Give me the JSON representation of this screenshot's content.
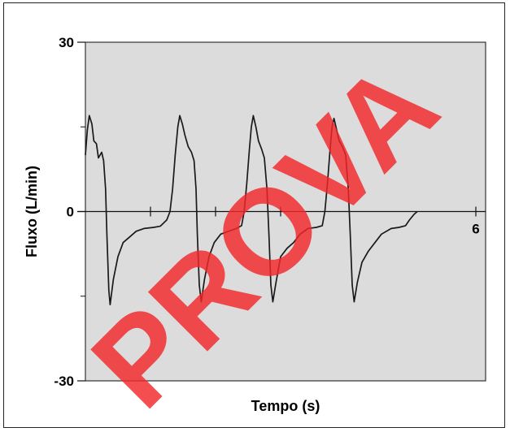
{
  "chart_data": {
    "type": "line",
    "title": "",
    "xlabel": "Tempo (s)",
    "ylabel": "Fluxo (L/min)",
    "xlim": [
      0,
      6
    ],
    "ylim": [
      -30,
      30
    ],
    "x_tick_labels": [
      {
        "x": 6,
        "label": "6"
      }
    ],
    "y_tick_labels": [
      {
        "y": 30,
        "label": "30"
      },
      {
        "y": 0,
        "label": "0"
      },
      {
        "y": -30,
        "label": "-30"
      }
    ],
    "x_minor_ticks": [
      1,
      2,
      3
    ],
    "y_minor_ticks": [
      15,
      -15
    ],
    "grid": false,
    "background_color": "#dcdcdc",
    "line_color": "#1a1a1a",
    "series": [
      {
        "points": [
          [
            0.0,
            10
          ],
          [
            0.03,
            14.5
          ],
          [
            0.06,
            17
          ],
          [
            0.1,
            15.5
          ],
          [
            0.13,
            12.5
          ],
          [
            0.17,
            12
          ],
          [
            0.2,
            9.5
          ],
          [
            0.25,
            10.5
          ],
          [
            0.28,
            9
          ],
          [
            0.31,
            4
          ],
          [
            0.33,
            -4
          ],
          [
            0.36,
            -14
          ],
          [
            0.38,
            -16.5
          ],
          [
            0.43,
            -12
          ],
          [
            0.5,
            -8
          ],
          [
            0.58,
            -5.5
          ],
          [
            0.68,
            -4.5
          ],
          [
            0.78,
            -3.5
          ],
          [
            0.9,
            -3
          ],
          [
            1.05,
            -2.8
          ],
          [
            1.15,
            -2.6
          ],
          [
            1.25,
            -1.5
          ],
          [
            1.3,
            0
          ],
          [
            1.34,
            4
          ],
          [
            1.38,
            10
          ],
          [
            1.42,
            15
          ],
          [
            1.45,
            17
          ],
          [
            1.49,
            15.5
          ],
          [
            1.53,
            13.5
          ],
          [
            1.58,
            11.5
          ],
          [
            1.63,
            10.5
          ],
          [
            1.67,
            9
          ],
          [
            1.7,
            4
          ],
          [
            1.72,
            -4
          ],
          [
            1.75,
            -13
          ],
          [
            1.78,
            -16
          ],
          [
            1.83,
            -12
          ],
          [
            1.9,
            -8
          ],
          [
            1.98,
            -5.5
          ],
          [
            2.08,
            -4
          ],
          [
            2.2,
            -3.5
          ],
          [
            2.32,
            -3
          ],
          [
            2.4,
            -2.5
          ],
          [
            2.44,
            0
          ],
          [
            2.48,
            5
          ],
          [
            2.52,
            11
          ],
          [
            2.55,
            15
          ],
          [
            2.58,
            17
          ],
          [
            2.62,
            15
          ],
          [
            2.66,
            12.5
          ],
          [
            2.71,
            11
          ],
          [
            2.75,
            9.5
          ],
          [
            2.79,
            4
          ],
          [
            2.82,
            -4
          ],
          [
            2.85,
            -13
          ],
          [
            2.88,
            -16
          ],
          [
            2.93,
            -12.5
          ],
          [
            3.0,
            -8
          ],
          [
            3.1,
            -6.5
          ],
          [
            3.2,
            -5.5
          ],
          [
            3.3,
            -4
          ],
          [
            3.42,
            -3
          ],
          [
            3.55,
            -2.8
          ],
          [
            3.64,
            -2.5
          ],
          [
            3.68,
            0
          ],
          [
            3.72,
            5
          ],
          [
            3.76,
            11
          ],
          [
            3.79,
            15
          ],
          [
            3.82,
            16.5
          ],
          [
            3.86,
            14.5
          ],
          [
            3.9,
            12.5
          ],
          [
            3.95,
            11.5
          ],
          [
            4.0,
            10
          ],
          [
            4.04,
            4
          ],
          [
            4.07,
            -4
          ],
          [
            4.1,
            -13
          ],
          [
            4.13,
            -16
          ],
          [
            4.18,
            -12.5
          ],
          [
            4.25,
            -9
          ],
          [
            4.35,
            -7
          ],
          [
            4.45,
            -5.5
          ],
          [
            4.55,
            -4
          ],
          [
            4.7,
            -3
          ],
          [
            4.82,
            -2.8
          ],
          [
            4.92,
            -2.5
          ],
          [
            4.98,
            -1.5
          ],
          [
            5.05,
            -0.5
          ],
          [
            5.1,
            0
          ]
        ]
      }
    ]
  },
  "watermark": {
    "text": "PROVA",
    "color": "#f2272b"
  }
}
